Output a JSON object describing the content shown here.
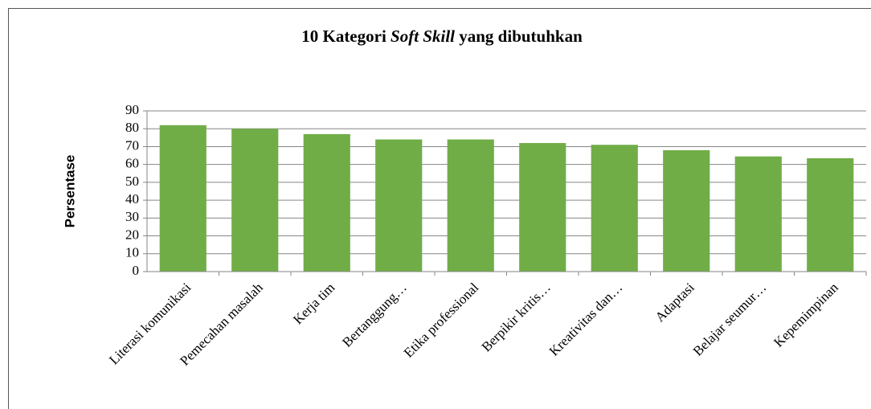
{
  "chart_data": {
    "type": "bar",
    "title": [
      "10 Kategori ",
      "Soft Skill",
      "  yang dibutuhkan"
    ],
    "y_label": "Persentase",
    "categories": [
      "Literasi komunikasi",
      "Pemecahan masalah",
      "Kerja tim",
      "Bertanggung…",
      "Etika professional",
      "Berpikir kritis…",
      "Kreativitas dan…",
      "Adaptasi",
      "Belajar seumur…",
      "Kepemimpinan"
    ],
    "values": [
      82,
      80,
      77,
      74,
      74,
      72,
      71,
      68,
      64.5,
      63.5
    ],
    "color": "#70ad47",
    "ylim": [
      0,
      90
    ],
    "yticks": [
      0,
      10,
      20,
      30,
      40,
      50,
      60,
      70,
      80,
      90
    ],
    "grid": true
  }
}
